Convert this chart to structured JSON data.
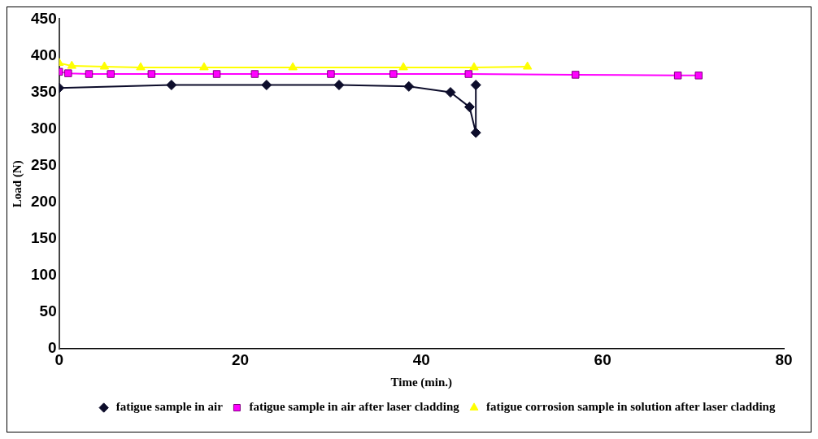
{
  "chart_data": {
    "type": "line",
    "xlabel": "Time (min.)",
    "ylabel": "Load (N)",
    "xlim": [
      0,
      80
    ],
    "xticks": [
      0,
      20,
      40,
      60,
      80
    ],
    "ylim": [
      0,
      450
    ],
    "yticks": [
      0,
      50,
      100,
      150,
      200,
      250,
      300,
      350,
      400,
      450
    ],
    "grid": false,
    "legend": "bottom right",
    "series": [
      {
        "name": "fatigue sample in air",
        "color": "#0d0d2b",
        "marker": "diamond",
        "x": [
          0,
          12.4,
          22.9,
          30.9,
          38.6,
          43.2,
          45.3,
          46.0,
          46.0
        ],
        "values": [
          356,
          360,
          360,
          360,
          358,
          350,
          330,
          295,
          360
        ]
      },
      {
        "name": "fatigue sample in air after laser cladding",
        "color": "#ff00ff",
        "marker": "square",
        "x": [
          0,
          1.0,
          3.3,
          5.7,
          10.2,
          17.4,
          21.6,
          30.0,
          36.9,
          45.2,
          57.0,
          68.3,
          70.6
        ],
        "values": [
          378,
          376,
          375,
          375,
          375,
          375,
          375,
          375,
          375,
          375,
          374,
          373,
          373
        ]
      },
      {
        "name": "fatigue corrosion sample in solution after laser cladding",
        "color": "#ffff00",
        "marker": "triangle",
        "x": [
          0,
          1.4,
          5.0,
          9.0,
          16.0,
          25.8,
          38.0,
          45.8,
          51.7
        ],
        "values": [
          390,
          386,
          385,
          384,
          384,
          384,
          384,
          384,
          385
        ]
      }
    ]
  }
}
